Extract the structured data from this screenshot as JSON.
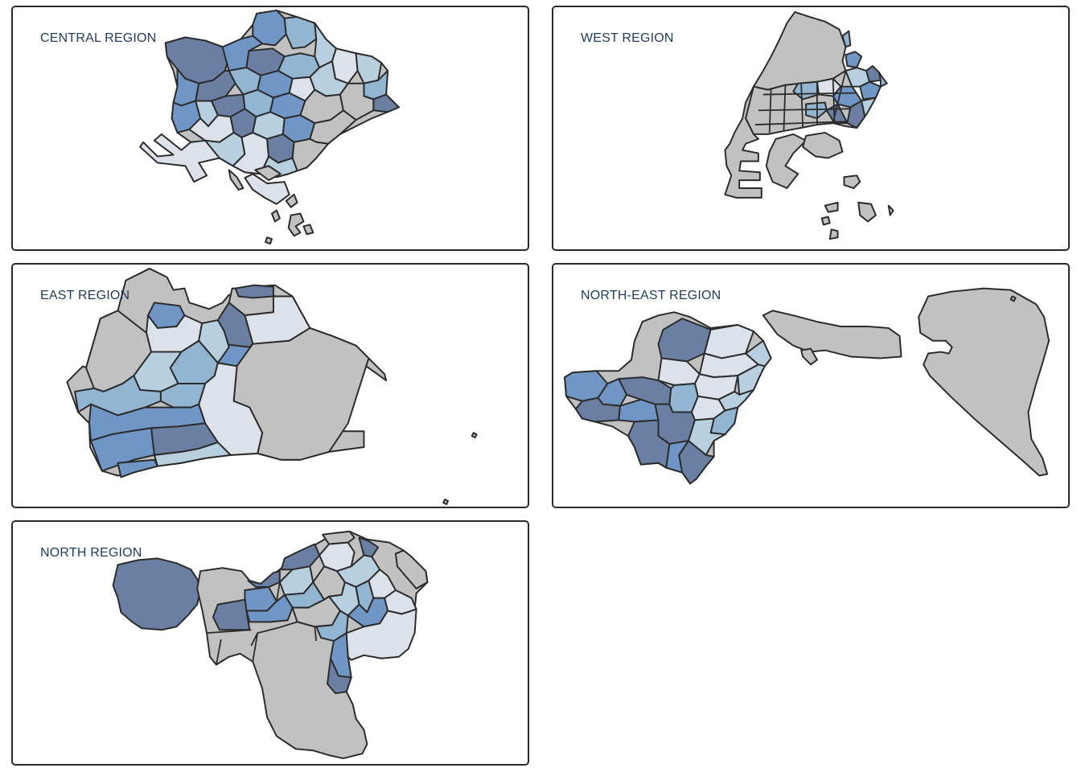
{
  "palette": {
    "grey": "#c1c1c1",
    "very_light": "#dde2ea",
    "light": "#b8cfe0",
    "medium": "#92b5d2",
    "strong": "#6f96c4",
    "dark": "#6b7fa3"
  },
  "panels": [
    {
      "id": "central",
      "title": "CENTRAL REGION"
    },
    {
      "id": "west",
      "title": "WEST REGION"
    },
    {
      "id": "east",
      "title": "EAST REGION"
    },
    {
      "id": "northeast",
      "title": "NORTH-EAST REGION"
    },
    {
      "id": "north",
      "title": "NORTH REGION"
    }
  ]
}
